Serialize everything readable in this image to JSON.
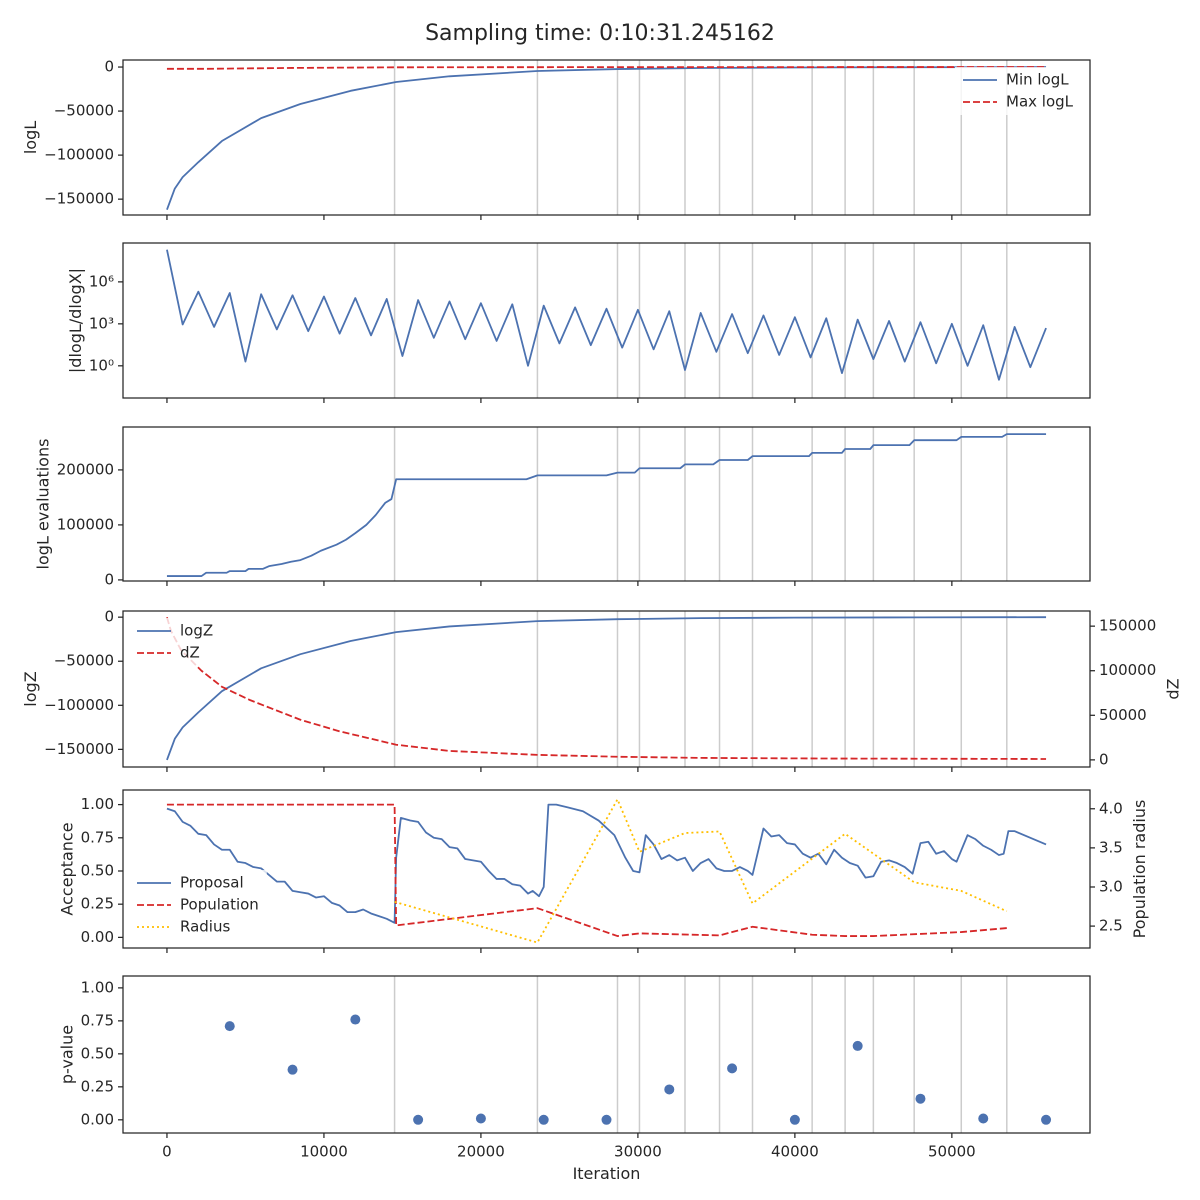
{
  "title": "Sampling time: 0:10:31.245162",
  "xlabel": "Iteration",
  "xlim": [
    -2800,
    58800
  ],
  "xticks": [
    0,
    10000,
    20000,
    30000,
    40000,
    50000
  ],
  "vlines": [
    14500,
    23600,
    28700,
    30100,
    33000,
    35200,
    37300,
    41100,
    43200,
    45000,
    47600,
    50600,
    53500
  ],
  "chart_data": [
    {
      "type": "line",
      "ylabel": "logL",
      "ylim": [
        -168000,
        8000
      ],
      "yticks": [
        0,
        {
          "value": -50000,
          "label": "−50000"
        },
        {
          "value": -100000,
          "label": "−100000"
        },
        {
          "value": -150000,
          "label": "−150000"
        }
      ],
      "show_vlines": true,
      "legend": "upper right",
      "series": [
        {
          "name": "Min logL",
          "color": "#4c72b0",
          "style": "solid",
          "x": [
            0,
            500,
            1000,
            2000,
            3500,
            6000,
            8500,
            11700,
            14600,
            18000,
            23600,
            28700,
            34000,
            40000,
            48000,
            56000
          ],
          "values": [
            -162000,
            -138000,
            -125000,
            -108000,
            -84000,
            -58000,
            -42000,
            -27000,
            -17000,
            -10500,
            -4500,
            -2300,
            -1100,
            -500,
            -200,
            0
          ]
        },
        {
          "name": "Max logL",
          "color": "#d62728",
          "style": "dashed",
          "x": [
            0,
            2500,
            8000,
            14500,
            22000,
            30000,
            56000
          ],
          "values": [
            -2000,
            -2000,
            -1000,
            -300,
            -150,
            -80,
            0
          ]
        }
      ]
    },
    {
      "type": "line",
      "ylabel": "|dlogL/dlogX|",
      "log": true,
      "ylim": [
        0.005,
        600000000
      ],
      "yticks": [
        {
          "value": 1,
          "label": "10⁰"
        },
        {
          "value": 1000,
          "label": "10³"
        },
        {
          "value": 1000000,
          "label": "10⁶"
        }
      ],
      "show_vlines": true,
      "series": [
        {
          "color": "#4c72b0",
          "style": "solid",
          "x": [
            0,
            1000,
            2000,
            3000,
            4000,
            5000,
            6000,
            7000,
            8000,
            9000,
            10000,
            11000,
            12000,
            13000,
            14000,
            15000,
            16000,
            17000,
            18000,
            19000,
            20000,
            21000,
            22000,
            23000,
            24000,
            25000,
            26000,
            27000,
            28000,
            29000,
            30000,
            31000,
            32000,
            33000,
            34000,
            35000,
            36000,
            37000,
            38000,
            39000,
            40000,
            41000,
            42000,
            43000,
            44000,
            45000,
            46000,
            47000,
            48000,
            49000,
            50000,
            51000,
            52000,
            53000,
            54000,
            55000,
            56000
          ],
          "values": [
            200000000,
            900,
            200000,
            600,
            160000,
            2,
            130000,
            400,
            110000,
            300,
            90000,
            200,
            70000,
            150,
            60000,
            5,
            50000,
            100,
            40000,
            80,
            30000,
            60,
            25000,
            1,
            20000,
            40,
            15000,
            30,
            12000,
            20,
            10000,
            15,
            8000,
            0.5,
            6000,
            10,
            5000,
            8,
            4000,
            6,
            3000,
            4,
            2500,
            0.3,
            2000,
            3,
            1600,
            2,
            1300,
            1.5,
            1000,
            1,
            800,
            0.1,
            600,
            0.8,
            500
          ]
        }
      ]
    },
    {
      "type": "line",
      "ylabel": "logL evaluations",
      "ylim": [
        -2000,
        278000
      ],
      "yticks": [
        0,
        100000,
        200000
      ],
      "show_vlines": true,
      "series": [
        {
          "color": "#4c72b0",
          "style": "solid",
          "x": [
            0,
            2200,
            2500,
            3800,
            4000,
            5000,
            5200,
            6100,
            6500,
            7300,
            7900,
            8500,
            9200,
            9800,
            10800,
            11400,
            12000,
            12700,
            13300,
            13900,
            14300,
            14600,
            22900,
            23600,
            28000,
            28700,
            29800,
            30100,
            32700,
            33000,
            34800,
            35200,
            37000,
            37300,
            40900,
            41100,
            43000,
            43200,
            44800,
            45000,
            47300,
            47600,
            50300,
            50600,
            53200,
            53500,
            56000
          ],
          "values": [
            7000,
            7000,
            13000,
            13000,
            16000,
            16000,
            20000,
            20000,
            25000,
            29000,
            33000,
            36000,
            44000,
            53000,
            64000,
            73000,
            85000,
            100000,
            118000,
            140000,
            147000,
            183000,
            183000,
            190000,
            190000,
            195000,
            195000,
            203000,
            203000,
            210000,
            210000,
            218000,
            218000,
            225000,
            225000,
            231000,
            231000,
            238000,
            238000,
            245000,
            245000,
            254000,
            254000,
            260000,
            260000,
            265000,
            265000
          ]
        }
      ]
    },
    {
      "type": "line",
      "ylabel": "logZ",
      "ylim": [
        -170000,
        7000
      ],
      "yticks": [
        0,
        {
          "value": -50000,
          "label": "−50000"
        },
        {
          "value": -100000,
          "label": "−100000"
        },
        {
          "value": -150000,
          "label": "−150000"
        }
      ],
      "y2label": "dZ",
      "y2lim": [
        -8000,
        167000
      ],
      "y2ticks": [
        0,
        50000,
        100000,
        150000
      ],
      "show_vlines": true,
      "legend": "upper left",
      "series": [
        {
          "name": "logZ",
          "color": "#4c72b0",
          "style": "solid",
          "x": [
            0,
            500,
            1000,
            2000,
            3500,
            6000,
            8500,
            11700,
            14600,
            18000,
            23600,
            28700,
            34000,
            40000,
            48000,
            56000
          ],
          "values": [
            -162000,
            -138000,
            -125000,
            -108000,
            -84000,
            -58000,
            -42000,
            -27000,
            -17000,
            -10500,
            -4500,
            -2300,
            -1100,
            -500,
            -200,
            0
          ]
        },
        {
          "name": "dZ",
          "color": "#d62728",
          "style": "dashed",
          "axis": "y2",
          "x": [
            0,
            250,
            900,
            2200,
            3500,
            5300,
            8500,
            11000,
            14600,
            18000,
            23600,
            28700,
            34000,
            42000,
            56000
          ],
          "values": [
            160000,
            145000,
            123000,
            100000,
            82000,
            67000,
            45000,
            32000,
            17000,
            10000,
            5600,
            3500,
            2200,
            1500,
            1000
          ]
        }
      ]
    },
    {
      "type": "line",
      "ylabel": "Acceptance",
      "ylim": [
        -0.08,
        1.11
      ],
      "yticks": [
        {
          "value": 0,
          "label": "0.00"
        },
        0.25,
        {
          "value": 0.5,
          "label": "0.50"
        },
        0.75,
        {
          "value": 1,
          "label": "1.00"
        }
      ],
      "y2label": "Population radius",
      "y2lim": [
        2.22,
        4.24
      ],
      "y2ticks": [
        2.5,
        {
          "value": 3,
          "label": "3.0"
        },
        3.5,
        {
          "value": 4,
          "label": "4.0"
        }
      ],
      "show_vlines": false,
      "legend": "lower left",
      "series": [
        {
          "name": "Proposal",
          "color": "#4c72b0",
          "style": "solid",
          "x": [
            0,
            500,
            1000,
            1500,
            2000,
            2500,
            3000,
            3500,
            4000,
            4500,
            5000,
            5500,
            6000,
            6500,
            7000,
            7500,
            8000,
            8500,
            9000,
            9500,
            10000,
            10500,
            11000,
            11500,
            12000,
            12500,
            13000,
            13500,
            14000,
            14500,
            14600,
            14900,
            15500,
            16000,
            16500,
            17000,
            17500,
            18000,
            18500,
            19000,
            19500,
            20000,
            20500,
            21000,
            21500,
            22000,
            22500,
            23000,
            23300,
            23700,
            24000,
            24300,
            24800,
            25500,
            26500,
            27500,
            28500,
            29200,
            29700,
            30100,
            30500,
            31000,
            31500,
            32000,
            32500,
            33000,
            33500,
            34000,
            34500,
            35000,
            35500,
            36000,
            36500,
            37000,
            37300,
            38000,
            38500,
            39000,
            39500,
            40000,
            40500,
            41000,
            41500,
            42000,
            42500,
            43000,
            43500,
            44000,
            44500,
            45000,
            45500,
            46000,
            46500,
            47000,
            47500,
            48000,
            48500,
            49000,
            49500,
            50000,
            50300,
            51000,
            51500,
            52000,
            52500,
            53000,
            53300,
            53600,
            54000,
            55000,
            56000
          ],
          "values": [
            0.97,
            0.95,
            0.87,
            0.84,
            0.78,
            0.77,
            0.7,
            0.66,
            0.66,
            0.57,
            0.56,
            0.53,
            0.52,
            0.47,
            0.42,
            0.42,
            0.35,
            0.34,
            0.33,
            0.3,
            0.31,
            0.26,
            0.24,
            0.19,
            0.19,
            0.21,
            0.18,
            0.16,
            0.14,
            0.11,
            0.6,
            0.9,
            0.88,
            0.87,
            0.79,
            0.75,
            0.74,
            0.68,
            0.67,
            0.59,
            0.58,
            0.57,
            0.5,
            0.44,
            0.44,
            0.4,
            0.39,
            0.33,
            0.35,
            0.31,
            0.38,
            1.0,
            1.0,
            0.98,
            0.95,
            0.88,
            0.77,
            0.6,
            0.5,
            0.49,
            0.77,
            0.7,
            0.59,
            0.62,
            0.58,
            0.6,
            0.5,
            0.56,
            0.59,
            0.52,
            0.5,
            0.5,
            0.53,
            0.5,
            0.47,
            0.82,
            0.76,
            0.77,
            0.71,
            0.7,
            0.63,
            0.6,
            0.63,
            0.55,
            0.66,
            0.6,
            0.56,
            0.54,
            0.45,
            0.46,
            0.57,
            0.58,
            0.56,
            0.53,
            0.48,
            0.71,
            0.72,
            0.63,
            0.65,
            0.59,
            0.57,
            0.77,
            0.74,
            0.69,
            0.66,
            0.62,
            0.63,
            0.8,
            0.8,
            0.75,
            0.7
          ]
        },
        {
          "name": "Population",
          "color": "#d62728",
          "style": "dashed",
          "x": [
            0,
            14500,
            14600,
            23600,
            28700,
            30100,
            35200,
            37300,
            41100,
            43200,
            45000,
            50600,
            53500
          ],
          "values": [
            1.0,
            1.0,
            0.09,
            0.22,
            0.01,
            0.03,
            0.015,
            0.08,
            0.02,
            0.01,
            0.01,
            0.04,
            0.07
          ]
        },
        {
          "name": "Radius",
          "color": "#ffbf00",
          "style": "dotted",
          "axis": "y2",
          "x": [
            14500,
            23600,
            28700,
            30100,
            33000,
            35200,
            37300,
            43200,
            47600,
            50600,
            53500
          ],
          "values": [
            2.81,
            2.29,
            4.12,
            3.45,
            3.69,
            3.71,
            2.79,
            3.68,
            3.06,
            2.95,
            2.69
          ]
        }
      ]
    },
    {
      "type": "scatter",
      "ylabel": "p-value",
      "ylim": [
        -0.1,
        1.09
      ],
      "yticks": [
        {
          "value": 0,
          "label": "0.00"
        },
        0.25,
        {
          "value": 0.5,
          "label": "0.50"
        },
        0.75,
        {
          "value": 1,
          "label": "1.00"
        }
      ],
      "show_vlines": true,
      "series": [
        {
          "color": "#4c72b0",
          "x": [
            4000,
            8000,
            12000,
            16000,
            20000,
            24000,
            28000,
            32000,
            36000,
            40000,
            44000,
            48000,
            52000,
            56000
          ],
          "values": [
            0.71,
            0.38,
            0.76,
            0.0,
            0.01,
            0.0,
            0.0,
            0.23,
            0.39,
            0.0,
            0.56,
            0.16,
            0.01,
            0.0
          ]
        }
      ]
    }
  ]
}
